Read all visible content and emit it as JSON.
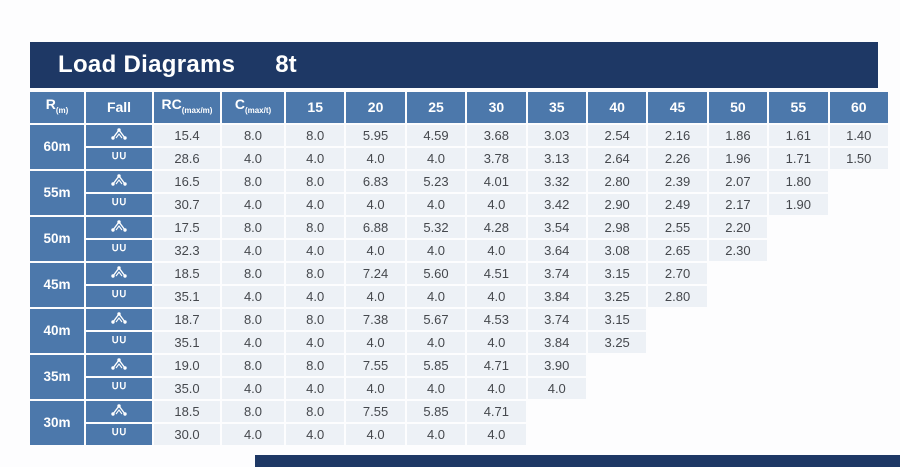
{
  "title": {
    "text": "Load Diagrams",
    "capacity": "8t"
  },
  "colors": {
    "title_bar": "#1E3865",
    "header_cell": "#4C78AB",
    "data_cell": "#EDF1F6",
    "data_text": "#45484D",
    "header_text": "#FFFFFF",
    "accent_bar": "#1E3865"
  },
  "chart_data": {
    "type": "table",
    "title": "Load Diagrams 8t",
    "header": {
      "r_main": "R",
      "r_sub": "(m)",
      "fall": "Fall",
      "rc_main": "RC",
      "rc_sub": "(max/m)",
      "c_main": "C",
      "c_sub": "(max/t)",
      "radii": [
        "15",
        "20",
        "25",
        "30",
        "35",
        "40",
        "45",
        "50",
        "55",
        "60"
      ]
    },
    "groups": [
      {
        "boom": "60m",
        "rows": [
          {
            "fall_icon": "four-fall-icon",
            "rc_max": "15.4",
            "c_max": "8.0",
            "loads": [
              "8.0",
              "5.95",
              "4.59",
              "3.68",
              "3.03",
              "2.54",
              "2.16",
              "1.86",
              "1.61",
              "1.40"
            ]
          },
          {
            "fall_icon": "two-fall-icon",
            "rc_max": "28.6",
            "c_max": "4.0",
            "loads": [
              "4.0",
              "4.0",
              "4.0",
              "3.78",
              "3.13",
              "2.64",
              "2.26",
              "1.96",
              "1.71",
              "1.50"
            ]
          }
        ]
      },
      {
        "boom": "55m",
        "rows": [
          {
            "fall_icon": "four-fall-icon",
            "rc_max": "16.5",
            "c_max": "8.0",
            "loads": [
              "8.0",
              "6.83",
              "5.23",
              "4.01",
              "3.32",
              "2.80",
              "2.39",
              "2.07",
              "1.80",
              ""
            ]
          },
          {
            "fall_icon": "two-fall-icon",
            "rc_max": "30.7",
            "c_max": "4.0",
            "loads": [
              "4.0",
              "4.0",
              "4.0",
              "4.0",
              "3.42",
              "2.90",
              "2.49",
              "2.17",
              "1.90",
              ""
            ]
          }
        ]
      },
      {
        "boom": "50m",
        "rows": [
          {
            "fall_icon": "four-fall-icon",
            "rc_max": "17.5",
            "c_max": "8.0",
            "loads": [
              "8.0",
              "6.88",
              "5.32",
              "4.28",
              "3.54",
              "2.98",
              "2.55",
              "2.20",
              "",
              ""
            ]
          },
          {
            "fall_icon": "two-fall-icon",
            "rc_max": "32.3",
            "c_max": "4.0",
            "loads": [
              "4.0",
              "4.0",
              "4.0",
              "4.0",
              "3.64",
              "3.08",
              "2.65",
              "2.30",
              "",
              ""
            ]
          }
        ]
      },
      {
        "boom": "45m",
        "rows": [
          {
            "fall_icon": "four-fall-icon",
            "rc_max": "18.5",
            "c_max": "8.0",
            "loads": [
              "8.0",
              "7.24",
              "5.60",
              "4.51",
              "3.74",
              "3.15",
              "2.70",
              "",
              "",
              ""
            ]
          },
          {
            "fall_icon": "two-fall-icon",
            "rc_max": "35.1",
            "c_max": "4.0",
            "loads": [
              "4.0",
              "4.0",
              "4.0",
              "4.0",
              "3.84",
              "3.25",
              "2.80",
              "",
              "",
              ""
            ]
          }
        ]
      },
      {
        "boom": "40m",
        "rows": [
          {
            "fall_icon": "four-fall-icon",
            "rc_max": "18.7",
            "c_max": "8.0",
            "loads": [
              "8.0",
              "7.38",
              "5.67",
              "4.53",
              "3.74",
              "3.15",
              "",
              "",
              "",
              ""
            ]
          },
          {
            "fall_icon": "two-fall-icon",
            "rc_max": "35.1",
            "c_max": "4.0",
            "loads": [
              "4.0",
              "4.0",
              "4.0",
              "4.0",
              "3.84",
              "3.25",
              "",
              "",
              "",
              ""
            ]
          }
        ]
      },
      {
        "boom": "35m",
        "rows": [
          {
            "fall_icon": "four-fall-icon",
            "rc_max": "19.0",
            "c_max": "8.0",
            "loads": [
              "8.0",
              "7.55",
              "5.85",
              "4.71",
              "3.90",
              "",
              "",
              "",
              "",
              ""
            ]
          },
          {
            "fall_icon": "two-fall-icon",
            "rc_max": "35.0",
            "c_max": "4.0",
            "loads": [
              "4.0",
              "4.0",
              "4.0",
              "4.0",
              "4.0",
              "",
              "",
              "",
              "",
              ""
            ]
          }
        ]
      },
      {
        "boom": "30m",
        "rows": [
          {
            "fall_icon": "four-fall-icon",
            "rc_max": "18.5",
            "c_max": "8.0",
            "loads": [
              "8.0",
              "7.55",
              "5.85",
              "4.71",
              "",
              "",
              "",
              "",
              "",
              ""
            ]
          },
          {
            "fall_icon": "two-fall-icon",
            "rc_max": "30.0",
            "c_max": "4.0",
            "loads": [
              "4.0",
              "4.0",
              "4.0",
              "4.0",
              "",
              "",
              "",
              "",
              "",
              ""
            ]
          }
        ]
      }
    ]
  }
}
